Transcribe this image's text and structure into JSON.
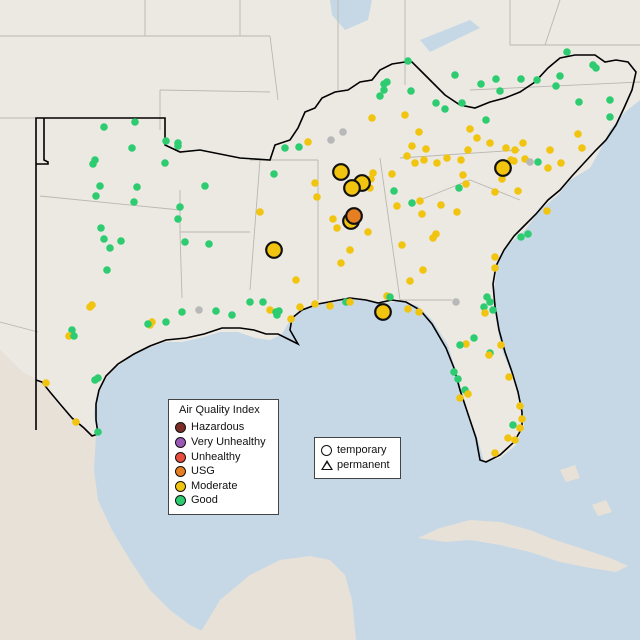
{
  "colors": {
    "ocean": "#c6d8e6",
    "land": "#ece9e3",
    "land_alt": "#e4e1da",
    "mexico": "#e8e1d8",
    "state_line": "#b9b7b2",
    "region_outline": "#000000",
    "good": "#2ecc71",
    "moderate": "#f1c40f",
    "usg": "#e67e22",
    "unhealthy": "#e74c3c",
    "very_unhealthy": "#9b59b6",
    "hazardous": "#7b2d26",
    "no_data": "#b8b8b8"
  },
  "aqi_legend": {
    "title": "Air Quality Index",
    "items": [
      {
        "label": "Hazardous",
        "color": "#7b2d26"
      },
      {
        "label": "Very Unhealthy",
        "color": "#9b59b6"
      },
      {
        "label": "Unhealthy",
        "color": "#e74c3c"
      },
      {
        "label": "USG",
        "color": "#e67e22"
      },
      {
        "label": "Moderate",
        "color": "#f1c40f"
      },
      {
        "label": "Good",
        "color": "#2ecc71"
      }
    ]
  },
  "site_legend": {
    "temporary": "temporary",
    "permanent": "permanent"
  },
  "monitors_summary": {
    "large_temporary_monitors": [
      {
        "category": "Moderate"
      },
      {
        "category": "Moderate"
      },
      {
        "category": "Moderate"
      },
      {
        "category": "USG"
      },
      {
        "category": "Moderate"
      },
      {
        "category": "Moderate"
      },
      {
        "category": "Moderate"
      },
      {
        "category": "Moderate"
      }
    ]
  }
}
